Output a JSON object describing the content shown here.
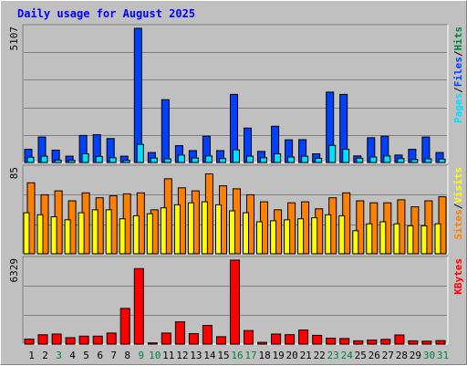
{
  "title": "Daily usage for August 2025",
  "colors": {
    "background": "#c0c0c0",
    "hits": "#008040",
    "files": "#0040ff",
    "pages": "#00e0ff",
    "visits": "#ffff00",
    "sites": "#ff8000",
    "kbytes": "#ff0000",
    "title": "#0000ff",
    "weekend_label": "#008040",
    "weekday_label": "#000000"
  },
  "chart_data": [
    {
      "type": "bar",
      "panel": "hits-files-pages",
      "y_max_label": "5107",
      "ylim": [
        0,
        5107
      ],
      "legend": [
        {
          "name": "Pages",
          "color": "#00e0ff"
        },
        {
          "name": "/",
          "color": "#000000"
        },
        {
          "name": "Files",
          "color": "#0040ff"
        },
        {
          "name": "/",
          "color": "#000000"
        },
        {
          "name": "Hits",
          "color": "#008040"
        }
      ],
      "categories": [
        "1",
        "2",
        "3",
        "4",
        "5",
        "6",
        "7",
        "8",
        "9",
        "10",
        "11",
        "12",
        "13",
        "14",
        "15",
        "16",
        "17",
        "18",
        "19",
        "20",
        "21",
        "22",
        "23",
        "24",
        "25",
        "26",
        "27",
        "28",
        "29",
        "30",
        "31"
      ],
      "series": [
        {
          "name": "Hits",
          "values": [
            500,
            970,
            470,
            240,
            1030,
            1060,
            910,
            240,
            5107,
            380,
            2390,
            640,
            450,
            1000,
            450,
            2590,
            1310,
            420,
            1380,
            860,
            870,
            330,
            2680,
            2590,
            250,
            940,
            1000,
            280,
            500,
            970,
            380
          ]
        },
        {
          "name": "Files",
          "values": [
            500,
            970,
            470,
            240,
            1030,
            1060,
            910,
            240,
            5107,
            380,
            2390,
            640,
            450,
            1000,
            450,
            2590,
            1310,
            420,
            1380,
            860,
            870,
            330,
            2640,
            2540,
            250,
            940,
            1000,
            280,
            500,
            970,
            380
          ]
        },
        {
          "name": "Pages",
          "values": [
            200,
            240,
            90,
            80,
            330,
            230,
            180,
            80,
            690,
            170,
            140,
            280,
            170,
            250,
            150,
            480,
            240,
            180,
            330,
            210,
            240,
            160,
            650,
            500,
            160,
            210,
            250,
            150,
            110,
            140,
            130
          ]
        }
      ]
    },
    {
      "type": "bar",
      "panel": "sites-visits",
      "y_max_label": "85",
      "ylim": [
        0,
        85
      ],
      "legend": [
        {
          "name": "Sites",
          "color": "#ff8000"
        },
        {
          "name": "/",
          "color": "#000000"
        },
        {
          "name": "Visits",
          "color": "#ffff00"
        }
      ],
      "categories": [
        "1",
        "2",
        "3",
        "4",
        "5",
        "6",
        "7",
        "8",
        "9",
        "10",
        "11",
        "12",
        "13",
        "14",
        "15",
        "16",
        "17",
        "18",
        "19",
        "20",
        "21",
        "22",
        "23",
        "24",
        "25",
        "26",
        "27",
        "28",
        "29",
        "30",
        "31"
      ],
      "series": [
        {
          "name": "Visits",
          "values": [
            41,
            39,
            37,
            34,
            41,
            44,
            44,
            35,
            38,
            40,
            46,
            49,
            51,
            52,
            49,
            43,
            41,
            32,
            33,
            34,
            35,
            36,
            39,
            38,
            23,
            30,
            32,
            30,
            28,
            28,
            30
          ]
        },
        {
          "name": "Sites",
          "values": [
            71,
            59,
            63,
            53,
            61,
            56,
            58,
            60,
            61,
            44,
            75,
            66,
            63,
            80,
            68,
            65,
            59,
            52,
            44,
            51,
            52,
            45,
            56,
            61,
            53,
            51,
            51,
            54,
            47,
            53,
            57
          ]
        }
      ]
    },
    {
      "type": "bar",
      "panel": "kbytes",
      "y_max_label": "6329",
      "ylim": [
        0,
        6329
      ],
      "legend": [
        {
          "name": "KBytes",
          "color": "#ff0000"
        }
      ],
      "categories": [
        "1",
        "2",
        "3",
        "4",
        "5",
        "6",
        "7",
        "8",
        "9",
        "10",
        "11",
        "12",
        "13",
        "14",
        "15",
        "16",
        "17",
        "18",
        "19",
        "20",
        "21",
        "22",
        "23",
        "24",
        "25",
        "26",
        "27",
        "28",
        "29",
        "30",
        "31"
      ],
      "series": [
        {
          "name": "KBytes",
          "values": [
            380,
            700,
            760,
            480,
            600,
            600,
            830,
            2690,
            5690,
            90,
            830,
            1680,
            790,
            1400,
            560,
            6329,
            1020,
            130,
            760,
            710,
            1060,
            660,
            450,
            420,
            250,
            310,
            360,
            690,
            250,
            220,
            260
          ]
        }
      ]
    }
  ],
  "weekend_days": [
    3,
    9,
    10,
    16,
    17,
    23,
    24,
    30,
    31
  ]
}
